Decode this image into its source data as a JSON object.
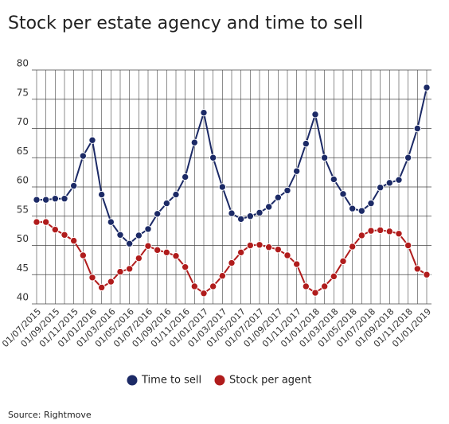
{
  "chart_data": {
    "type": "line",
    "title": "Stock per estate agency and time to sell",
    "source": "Source: Rightmove",
    "categories": [
      "01/07/2015",
      null,
      "01/09/2015",
      null,
      "01/11/2015",
      null,
      "01/01/2016",
      null,
      "01/03/2016",
      null,
      "01/05/2016",
      null,
      "01/07/2016",
      null,
      "01/09/2016",
      null,
      "01/11/2016",
      null,
      "01/01/2017",
      null,
      "01/03/2017",
      null,
      "01/05/2017",
      null,
      "01/07/2017",
      null,
      "01/09/2017",
      null,
      "01/11/2017",
      null,
      "01/01/2018",
      null,
      "01/03/2018",
      null,
      "01/05/2018",
      null,
      "01/07/2018",
      null,
      "01/09/2018",
      null,
      "01/11/2018",
      null,
      "01/01/2019"
    ],
    "series": [
      {
        "name": "Time to sell",
        "color": "#1c2a66",
        "values": [
          57.8,
          57.8,
          58,
          58,
          60.2,
          65.3,
          68,
          58.7,
          54,
          51.8,
          50.3,
          51.7,
          52.8,
          55.4,
          57.2,
          58.7,
          61.7,
          67.6,
          72.7,
          65,
          60,
          55.5,
          54.5,
          55,
          55.6,
          56.6,
          58.2,
          59.4,
          62.7,
          67.4,
          72.4,
          65,
          61.3,
          58.8,
          56.3,
          55.9,
          57.2,
          59.9,
          60.7,
          61.2,
          65,
          70,
          77
        ]
      },
      {
        "name": "Stock per agent",
        "color": "#b01c1c",
        "values": [
          54,
          54,
          52.7,
          51.8,
          50.8,
          48.3,
          44.5,
          42.8,
          43.8,
          45.5,
          46,
          47.8,
          49.9,
          49.2,
          48.8,
          48.2,
          46.3,
          43,
          41.8,
          43,
          44.8,
          47,
          48.8,
          50,
          50.1,
          49.7,
          49.3,
          48.3,
          46.8,
          43,
          41.9,
          43,
          44.7,
          47.3,
          49.8,
          51.7,
          52.5,
          52.6,
          52.4,
          52,
          50,
          46,
          45
        ]
      }
    ],
    "ylim": [
      40,
      80
    ],
    "yticks": [
      40,
      45,
      50,
      55,
      60,
      65,
      70,
      75,
      80
    ],
    "grid": true,
    "legend": "bottom"
  }
}
